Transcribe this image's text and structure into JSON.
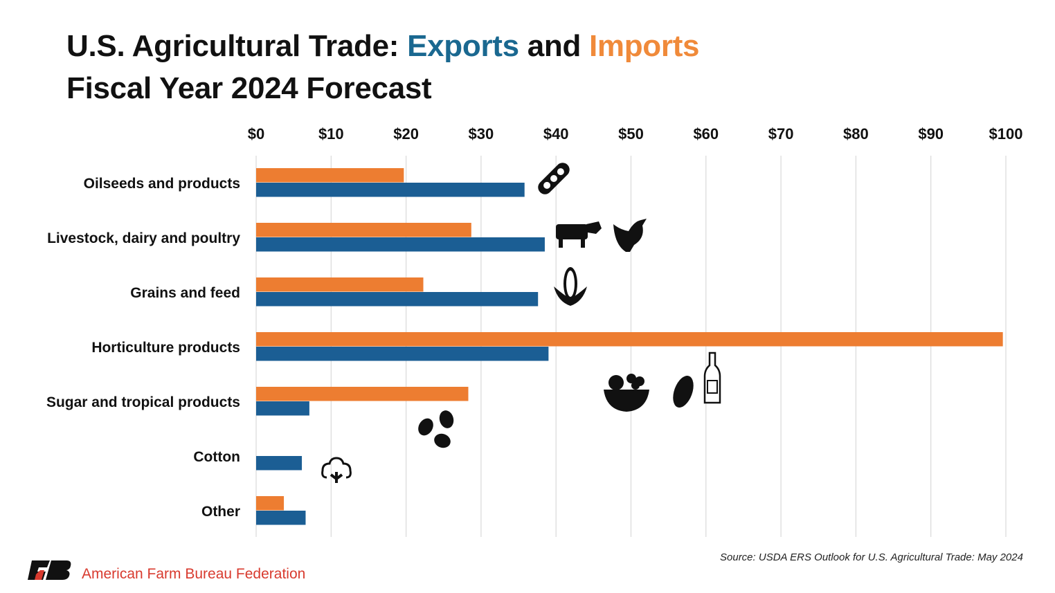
{
  "title": {
    "prefix": "U.S. Agricultural Trade: ",
    "exports_word": "Exports",
    "and_word": " and ",
    "imports_word": "Imports",
    "line2": "Fiscal Year 2024 Forecast"
  },
  "chart_data": {
    "type": "bar",
    "orientation": "horizontal",
    "title": "U.S. Agricultural Trade: Exports and Imports Fiscal Year 2024 Forecast",
    "categories": [
      "Oilseeds and products",
      "Livestock, dairy and poultry",
      "Grains and feed",
      "Horticulture products",
      "Sugar and tropical products",
      "Cotton",
      "Other"
    ],
    "series": [
      {
        "name": "Imports",
        "color": "#ed7d31",
        "values": [
          19.7,
          28.7,
          22.3,
          99.6,
          28.3,
          0,
          3.7
        ]
      },
      {
        "name": "Exports",
        "color": "#1b5e94",
        "values": [
          35.8,
          38.5,
          37.6,
          39.0,
          7.1,
          6.1,
          6.6
        ]
      }
    ],
    "xlim": [
      0,
      100
    ],
    "xticks": [
      "$0",
      "$10",
      "$20",
      "$30",
      "$40",
      "$50",
      "$60",
      "$70",
      "$80",
      "$90",
      "$100"
    ],
    "xaxis_position": "top",
    "grid": true,
    "icons": [
      "soybean-icon",
      "cow-icon",
      "chicken-icon",
      "corn-icon",
      "fruit-bowl-icon",
      "almond-icon",
      "bottle-icon",
      "coffee-beans-icon",
      "cotton-icon"
    ]
  },
  "footer": {
    "org": "American Farm Bureau Federation",
    "logo_text": "FB",
    "source": "Source: USDA ERS Outlook for U.S. Agricultural Trade: May 2024"
  }
}
